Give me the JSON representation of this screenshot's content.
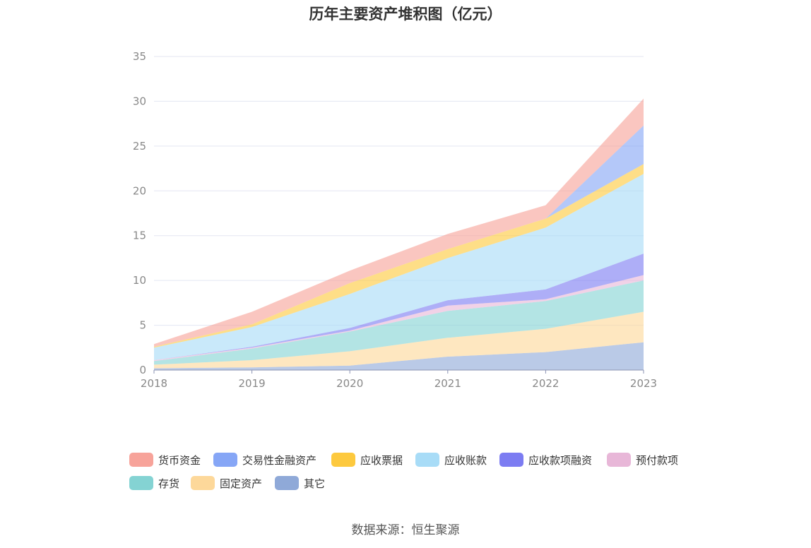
{
  "chart_data": {
    "type": "area",
    "stacked": true,
    "title": "历年主要资产堆积图（亿元）",
    "x": [
      "2018",
      "2019",
      "2020",
      "2021",
      "2022",
      "2023"
    ],
    "ylim": [
      0,
      35
    ],
    "yticks": [
      "0",
      "5",
      "10",
      "15",
      "20",
      "25",
      "30",
      "35"
    ],
    "grid": true,
    "legend_position": "bottom",
    "series": [
      {
        "name": "其它",
        "color": "#8fa9d8",
        "values": [
          0.2,
          0.3,
          0.5,
          1.5,
          2.0,
          3.1
        ]
      },
      {
        "name": "固定资产",
        "color": "#fdd89a",
        "values": [
          0.4,
          0.8,
          1.6,
          2.1,
          2.6,
          3.4
        ]
      },
      {
        "name": "存货",
        "color": "#84d3d3",
        "values": [
          0.4,
          1.3,
          2.2,
          3.0,
          3.1,
          3.5
        ]
      },
      {
        "name": "预付款项",
        "color": "#e8b7d8",
        "values": [
          0.1,
          0.1,
          0.1,
          0.6,
          0.2,
          0.6
        ]
      },
      {
        "name": "应收款项融资",
        "color": "#7c7cf2",
        "values": [
          0.0,
          0.1,
          0.3,
          0.6,
          1.1,
          2.4
        ]
      },
      {
        "name": "应收账款",
        "color": "#a8dcf7",
        "values": [
          1.4,
          2.2,
          3.8,
          4.7,
          6.9,
          8.9
        ]
      },
      {
        "name": "应收票据",
        "color": "#fdc93e",
        "values": [
          0.1,
          0.3,
          1.2,
          1.0,
          1.0,
          1.1
        ]
      },
      {
        "name": "交易性金融资产",
        "color": "#86a6f6",
        "values": [
          0.0,
          0.0,
          0.0,
          0.0,
          0.0,
          4.3
        ]
      },
      {
        "name": "货币资金",
        "color": "#f7a39a",
        "values": [
          0.3,
          1.4,
          1.4,
          1.7,
          1.5,
          3.0
        ]
      }
    ]
  },
  "legend": {
    "items": [
      {
        "label": "货币资金",
        "color": "#f7a39a"
      },
      {
        "label": "交易性金融资产",
        "color": "#86a6f6"
      },
      {
        "label": "应收票据",
        "color": "#fdc93e"
      },
      {
        "label": "应收账款",
        "color": "#a8dcf7"
      },
      {
        "label": "应收款项融资",
        "color": "#7c7cf2"
      },
      {
        "label": "预付款项",
        "color": "#e8b7d8"
      },
      {
        "label": "存货",
        "color": "#84d3d3"
      },
      {
        "label": "固定资产",
        "color": "#fdd89a"
      },
      {
        "label": "其它",
        "color": "#8fa9d8"
      }
    ]
  },
  "source": "数据来源：恒生聚源"
}
